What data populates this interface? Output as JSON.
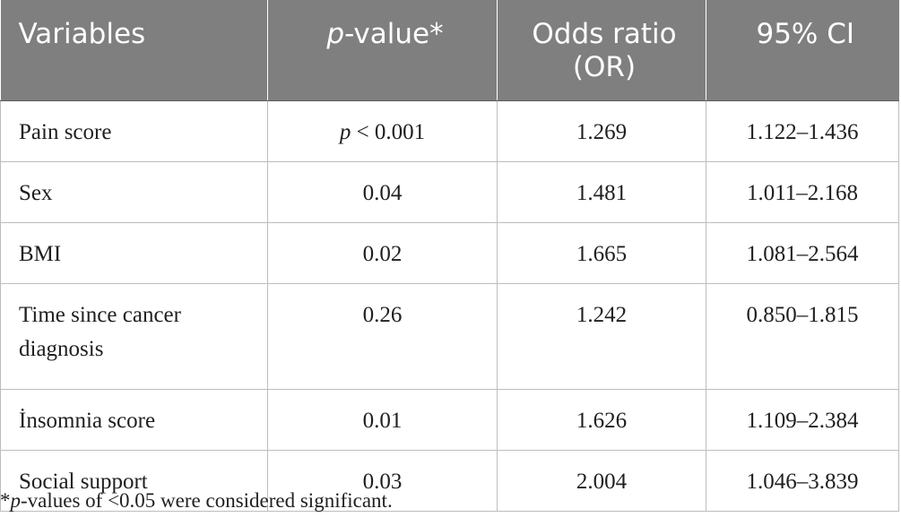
{
  "table": {
    "headers": {
      "variables": "Variables",
      "p_value_italic": "p",
      "p_value_rest": "-value*",
      "odds_ratio": "Odds ratio (OR)",
      "ci": "95% CI"
    },
    "rows": [
      {
        "variable": "Pain score",
        "p_italic": "p",
        "p_rest": " < 0.001",
        "or": "1.269",
        "ci": "1.122–1.436"
      },
      {
        "variable": "Sex",
        "p_value": "0.04",
        "or": "1.481",
        "ci": "1.011–2.168"
      },
      {
        "variable": "BMI",
        "p_value": "0.02",
        "or": "1.665",
        "ci": "1.081–2.564"
      },
      {
        "variable": "Time since cancer diagnosis",
        "p_value": "0.26",
        "or": "1.242",
        "ci": "0.850–1.815"
      },
      {
        "variable": "İnsomnia score",
        "p_value": "0.01",
        "or": "1.626",
        "ci": "1.109–2.384"
      },
      {
        "variable": "Social support",
        "p_value": "0.03",
        "or": "2.004",
        "ci": "1.046–3.839"
      }
    ]
  },
  "footnote": {
    "star": "*",
    "italic": "p",
    "rest": "-values of <0.05 were considered significant."
  }
}
